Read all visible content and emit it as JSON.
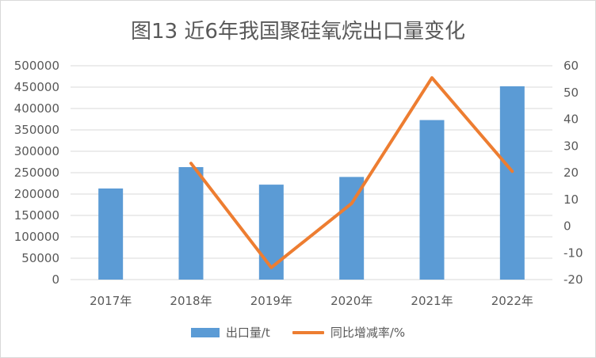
{
  "colors": {
    "bar": "#5b9bd5",
    "line": "#ed7d31",
    "grid": "#d9d9d9",
    "text": "#595959"
  },
  "chart_data": {
    "type": "bar",
    "title": "图13 近6年我国聚硅氧烷出口量变化",
    "categories": [
      "2017年",
      "2018年",
      "2019年",
      "2020年",
      "2021年",
      "2022年"
    ],
    "series": [
      {
        "name": "出口量/t",
        "type": "bar",
        "axis": "left",
        "values": [
          213000,
          263000,
          222000,
          240000,
          373000,
          452000
        ]
      },
      {
        "name": "同比增减率/%",
        "type": "line",
        "axis": "right",
        "values": [
          null,
          23.5,
          -15.5,
          8.5,
          55.5,
          20.5
        ]
      }
    ],
    "ylim_left": [
      0,
      500000
    ],
    "yticks_left": [
      "0",
      "50000",
      "100000",
      "150000",
      "200000",
      "250000",
      "300000",
      "350000",
      "400000",
      "450000",
      "500000"
    ],
    "ylim_right": [
      -20,
      60
    ],
    "yticks_right": [
      "-20",
      "-10",
      "0",
      "10",
      "20",
      "30",
      "40",
      "50",
      "60"
    ],
    "grid": true,
    "legend_position": "bottom"
  }
}
